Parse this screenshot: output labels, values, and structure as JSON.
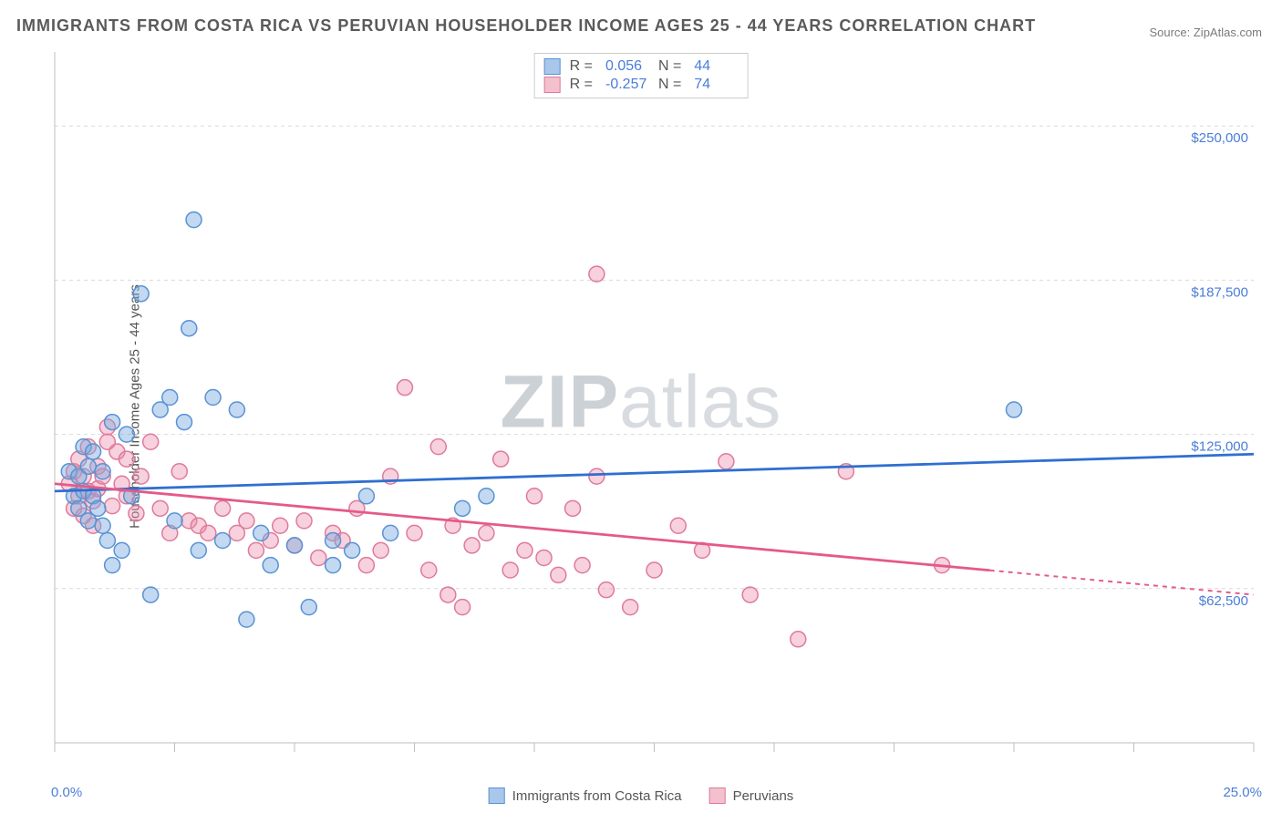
{
  "title": "IMMIGRANTS FROM COSTA RICA VS PERUVIAN HOUSEHOLDER INCOME AGES 25 - 44 YEARS CORRELATION CHART",
  "source": "Source: ZipAtlas.com",
  "watermark": "ZIPatlas",
  "y_axis_label": "Householder Income Ages 25 - 44 years",
  "x_axis": {
    "min_label": "0.0%",
    "max_label": "25.0%",
    "min": 0.0,
    "max": 25.0
  },
  "y_axis": {
    "min": 0,
    "max": 280000,
    "ticks": [
      {
        "v": 62500,
        "label": "$62,500"
      },
      {
        "v": 125000,
        "label": "$125,000"
      },
      {
        "v": 187500,
        "label": "$187,500"
      },
      {
        "v": 250000,
        "label": "$250,000"
      }
    ]
  },
  "x_ticks": [
    0,
    2.5,
    5.0,
    7.5,
    10.0,
    12.5,
    15.0,
    17.5,
    20.0,
    22.5,
    25.0
  ],
  "series": [
    {
      "name": "Immigrants from Costa Rica",
      "swatch_fill": "#a8c7eb",
      "swatch_stroke": "#5a92d4",
      "point_fill": "rgba(120,170,225,0.45)",
      "point_stroke": "#5a92d4",
      "line_color": "#2f6fd0",
      "R": "0.056",
      "N": "44",
      "trend": {
        "y_at_xmin": 102000,
        "y_at_xmax": 117000,
        "solid_until_x": 25.0
      },
      "points": [
        [
          0.3,
          110000
        ],
        [
          0.4,
          100000
        ],
        [
          0.5,
          108000
        ],
        [
          0.5,
          95000
        ],
        [
          0.6,
          120000
        ],
        [
          0.6,
          102000
        ],
        [
          0.7,
          90000
        ],
        [
          0.7,
          112000
        ],
        [
          0.8,
          100000
        ],
        [
          0.8,
          118000
        ],
        [
          0.9,
          95000
        ],
        [
          1.0,
          110000
        ],
        [
          1.0,
          88000
        ],
        [
          1.1,
          82000
        ],
        [
          1.2,
          72000
        ],
        [
          1.2,
          130000
        ],
        [
          1.4,
          78000
        ],
        [
          1.5,
          125000
        ],
        [
          1.6,
          100000
        ],
        [
          1.8,
          182000
        ],
        [
          2.0,
          60000
        ],
        [
          2.2,
          135000
        ],
        [
          2.4,
          140000
        ],
        [
          2.5,
          90000
        ],
        [
          2.7,
          130000
        ],
        [
          2.8,
          168000
        ],
        [
          2.9,
          212000
        ],
        [
          3.0,
          78000
        ],
        [
          3.3,
          140000
        ],
        [
          3.5,
          82000
        ],
        [
          3.8,
          135000
        ],
        [
          4.0,
          50000
        ],
        [
          4.3,
          85000
        ],
        [
          4.5,
          72000
        ],
        [
          5.0,
          80000
        ],
        [
          5.3,
          55000
        ],
        [
          5.8,
          72000
        ],
        [
          5.8,
          82000
        ],
        [
          6.2,
          78000
        ],
        [
          6.5,
          100000
        ],
        [
          7.0,
          85000
        ],
        [
          8.5,
          95000
        ],
        [
          9.0,
          100000
        ],
        [
          20.0,
          135000
        ]
      ]
    },
    {
      "name": "Peruvians",
      "swatch_fill": "#f3c0cd",
      "swatch_stroke": "#e07a9a",
      "point_fill": "rgba(235,140,170,0.40)",
      "point_stroke": "#e07a9a",
      "line_color": "#e45a88",
      "R": "-0.257",
      "N": "74",
      "trend": {
        "y_at_xmin": 105000,
        "y_at_xmax": 60000,
        "solid_until_x": 19.5
      },
      "points": [
        [
          0.3,
          105000
        ],
        [
          0.4,
          110000
        ],
        [
          0.4,
          95000
        ],
        [
          0.5,
          115000
        ],
        [
          0.5,
          100000
        ],
        [
          0.6,
          108000
        ],
        [
          0.6,
          92000
        ],
        [
          0.7,
          102000
        ],
        [
          0.7,
          120000
        ],
        [
          0.8,
          98000
        ],
        [
          0.8,
          88000
        ],
        [
          0.9,
          112000
        ],
        [
          0.9,
          103000
        ],
        [
          1.0,
          108000
        ],
        [
          1.1,
          122000
        ],
        [
          1.1,
          128000
        ],
        [
          1.2,
          96000
        ],
        [
          1.3,
          118000
        ],
        [
          1.4,
          105000
        ],
        [
          1.5,
          100000
        ],
        [
          1.5,
          115000
        ],
        [
          1.7,
          93000
        ],
        [
          1.8,
          108000
        ],
        [
          2.0,
          122000
        ],
        [
          2.2,
          95000
        ],
        [
          2.4,
          85000
        ],
        [
          2.6,
          110000
        ],
        [
          2.8,
          90000
        ],
        [
          3.0,
          88000
        ],
        [
          3.2,
          85000
        ],
        [
          3.5,
          95000
        ],
        [
          3.8,
          85000
        ],
        [
          4.0,
          90000
        ],
        [
          4.2,
          78000
        ],
        [
          4.5,
          82000
        ],
        [
          4.7,
          88000
        ],
        [
          5.0,
          80000
        ],
        [
          5.2,
          90000
        ],
        [
          5.5,
          75000
        ],
        [
          5.8,
          85000
        ],
        [
          6.0,
          82000
        ],
        [
          6.3,
          95000
        ],
        [
          6.5,
          72000
        ],
        [
          6.8,
          78000
        ],
        [
          7.0,
          108000
        ],
        [
          7.3,
          144000
        ],
        [
          7.5,
          85000
        ],
        [
          7.8,
          70000
        ],
        [
          8.0,
          120000
        ],
        [
          8.2,
          60000
        ],
        [
          8.3,
          88000
        ],
        [
          8.5,
          55000
        ],
        [
          8.7,
          80000
        ],
        [
          9.0,
          85000
        ],
        [
          9.3,
          115000
        ],
        [
          9.5,
          70000
        ],
        [
          9.8,
          78000
        ],
        [
          10.0,
          100000
        ],
        [
          10.2,
          75000
        ],
        [
          10.5,
          68000
        ],
        [
          10.8,
          95000
        ],
        [
          11.0,
          72000
        ],
        [
          11.3,
          108000
        ],
        [
          11.3,
          190000
        ],
        [
          11.5,
          62000
        ],
        [
          12.0,
          55000
        ],
        [
          12.5,
          70000
        ],
        [
          13.0,
          88000
        ],
        [
          13.5,
          78000
        ],
        [
          14.0,
          114000
        ],
        [
          14.5,
          60000
        ],
        [
          15.5,
          42000
        ],
        [
          16.5,
          110000
        ],
        [
          18.5,
          72000
        ]
      ]
    }
  ],
  "plot": {
    "bg": "#ffffff",
    "grid_color": "#d9d9d9",
    "axis_color": "#bfbfbf",
    "tick_len": 10,
    "marker_radius": 8.5,
    "marker_stroke_width": 1.5,
    "trend_width": 2.8,
    "y_tick_label_color": "#4a7dd8",
    "y_tick_label_size": 15
  },
  "legend_labels": {
    "R": "R =",
    "N": "N ="
  }
}
